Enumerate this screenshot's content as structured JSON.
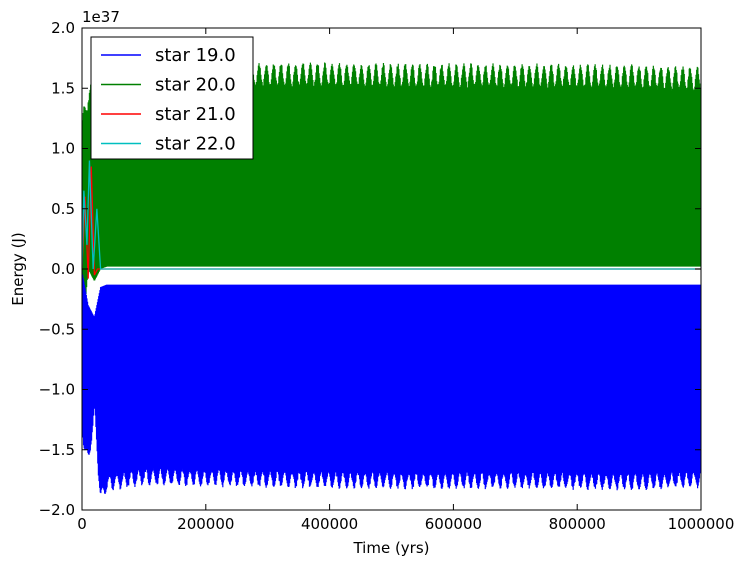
{
  "chart_data": {
    "type": "line",
    "xlabel": "Time (yrs)",
    "ylabel": "Energy (J)",
    "y_offset_label": "1e37",
    "xlim": [
      0,
      1000000
    ],
    "ylim": [
      -2.0,
      2.0
    ],
    "x_ticks": [
      0,
      200000,
      400000,
      600000,
      800000,
      1000000
    ],
    "x_tick_labels": [
      "0",
      "200000",
      "400000",
      "600000",
      "800000",
      "1000000"
    ],
    "y_ticks": [
      -2.0,
      -1.5,
      -1.0,
      -0.5,
      0.0,
      0.5,
      1.0,
      1.5,
      2.0
    ],
    "y_tick_labels": [
      "−2.0",
      "−1.5",
      "−1.0",
      "−0.5",
      "0.0",
      "0.5",
      "1.0",
      "1.5",
      "2.0"
    ],
    "grid": false,
    "legend_position": "top-left",
    "series": [
      {
        "name": "star 19.0",
        "color": "#0000ff",
        "description_values": {
          "steady_min": -1.78,
          "steady_max": -0.13,
          "transient_min": -1.97,
          "x": [
            0,
            10000,
            20000,
            30000,
            40000,
            100000,
            300000,
            500000,
            700000,
            900000,
            1000000
          ],
          "y_lower": [
            -1.4,
            -1.68,
            -1.25,
            -1.97,
            -1.85,
            -1.8,
            -1.82,
            -1.83,
            -1.83,
            -1.84,
            -1.82
          ],
          "y_upper": [
            -0.02,
            -0.3,
            -0.4,
            -0.15,
            -0.13,
            -0.13,
            -0.13,
            -0.13,
            -0.13,
            -0.13,
            -0.13
          ]
        }
      },
      {
        "name": "star 20.0",
        "color": "#008000",
        "description_values": {
          "steady_min": 0.02,
          "steady_max": 1.55,
          "peak_max": 1.72,
          "x": [
            0,
            10000,
            20000,
            30000,
            40000,
            100000,
            300000,
            500000,
            700000,
            900000,
            1000000
          ],
          "y_lower": [
            -0.6,
            0.0,
            -0.1,
            0.0,
            0.02,
            0.02,
            0.02,
            0.02,
            0.02,
            0.02,
            0.02
          ],
          "y_upper": [
            1.27,
            1.55,
            1.55,
            1.2,
            1.62,
            1.68,
            1.72,
            1.71,
            1.71,
            1.7,
            1.68
          ]
        }
      },
      {
        "name": "star 21.0",
        "color": "#ff0000",
        "description_values": {
          "x": [
            0,
            5000,
            10000,
            15000,
            20000,
            25000,
            30000,
            1000000
          ],
          "y": [
            0.0,
            0.6,
            -0.08,
            0.85,
            -0.05,
            0.0,
            0.0,
            0.0
          ]
        }
      },
      {
        "name": "star 22.0",
        "color": "#00bfbf",
        "description_values": {
          "x": [
            0,
            3000,
            8000,
            12000,
            18000,
            24000,
            30000,
            1000000
          ],
          "y": [
            0.0,
            0.65,
            0.2,
            0.9,
            0.0,
            0.5,
            0.0,
            0.0
          ]
        }
      }
    ]
  }
}
